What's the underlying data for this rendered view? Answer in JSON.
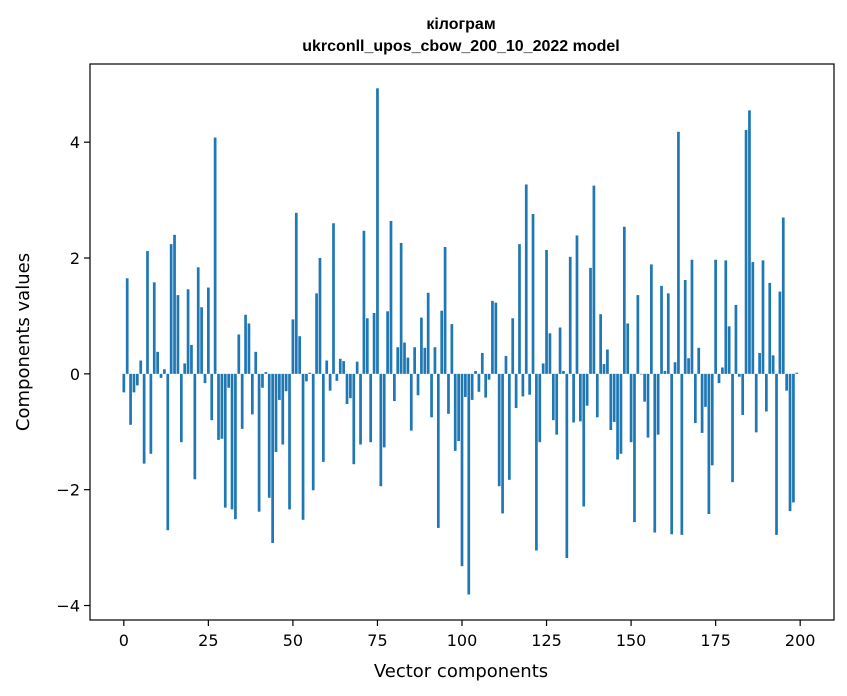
{
  "chart_data": {
    "type": "bar",
    "title_line1": "кілограм",
    "title_line2": "ukrconll_upos_cbow_200_10_2022 model",
    "xlabel": "Vector components",
    "ylabel": "Components values",
    "xlim": [
      -10,
      210
    ],
    "ylim": [
      -4.25,
      5.35
    ],
    "xticks": [
      0,
      25,
      50,
      75,
      100,
      125,
      150,
      175,
      200
    ],
    "yticks": [
      -4,
      -2,
      0,
      2,
      4
    ],
    "ytick_labels": [
      "−4",
      "−2",
      "0",
      "2",
      "4"
    ],
    "grid": false,
    "bar_color": "#1f77b4",
    "values": [
      -0.32,
      1.65,
      -0.88,
      -0.32,
      -0.2,
      0.23,
      -1.55,
      2.12,
      -1.38,
      1.58,
      0.38,
      -0.07,
      0.08,
      -2.7,
      2.24,
      2.4,
      1.36,
      -1.18,
      0.18,
      1.46,
      0.5,
      -1.82,
      1.84,
      1.15,
      -0.16,
      1.49,
      -0.8,
      4.08,
      -1.14,
      -1.12,
      -2.31,
      -0.24,
      -2.34,
      -2.51,
      0.68,
      -0.95,
      1.02,
      0.87,
      -0.7,
      0.38,
      -2.38,
      -0.24,
      0.03,
      -2.14,
      -2.92,
      -1.35,
      -0.45,
      -1.22,
      -0.3,
      -2.34,
      0.94,
      2.78,
      0.65,
      -2.52,
      -0.13,
      0.02,
      -2.01,
      1.39,
      2.0,
      -1.52,
      0.23,
      -0.29,
      2.6,
      -0.12,
      0.26,
      0.22,
      -0.52,
      -0.42,
      -1.56,
      0.21,
      -1.22,
      2.47,
      0.96,
      -1.18,
      1.05,
      4.93,
      -1.94,
      -1.27,
      1.08,
      2.64,
      -0.47,
      0.46,
      2.26,
      0.54,
      0.28,
      -0.98,
      0.46,
      -0.37,
      0.97,
      0.45,
      1.4,
      -0.75,
      0.46,
      -2.66,
      1.09,
      2.19,
      -0.69,
      0.86,
      -1.33,
      -1.16,
      -3.32,
      -0.4,
      -3.81,
      -0.45,
      0.05,
      -0.31,
      0.36,
      -0.41,
      -0.1,
      1.26,
      1.23,
      -1.94,
      -2.41,
      0.31,
      -1.83,
      0.96,
      -0.59,
      2.24,
      -0.39,
      3.27,
      -0.36,
      2.76,
      -3.05,
      -1.18,
      0.18,
      2.14,
      0.7,
      -0.8,
      -1.05,
      0.8,
      0.05,
      -3.18,
      2.02,
      -0.84,
      2.39,
      -0.82,
      -2.29,
      -0.55,
      1.83,
      3.25,
      -0.75,
      1.03,
      0.17,
      0.42,
      -0.97,
      -0.83,
      -1.48,
      -1.38,
      2.54,
      0.87,
      -1.18,
      -2.56,
      1.36,
      -0.01,
      -0.48,
      -1.1,
      1.89,
      -2.74,
      -1.05,
      1.52,
      0.05,
      1.39,
      -2.77,
      0.2,
      4.18,
      -2.78,
      1.62,
      0.27,
      1.97,
      -0.85,
      0.45,
      -1.02,
      -0.57,
      -2.42,
      -1.58,
      1.97,
      -0.16,
      0.11,
      1.96,
      0.82,
      -1.87,
      1.19,
      -0.05,
      -0.71,
      4.21,
      4.55,
      1.93,
      -1.01,
      0.36,
      1.96,
      -0.65,
      1.57,
      0.32,
      -2.78,
      1.42,
      2.7,
      -0.29,
      -2.37,
      -2.22,
      0.02
    ]
  }
}
